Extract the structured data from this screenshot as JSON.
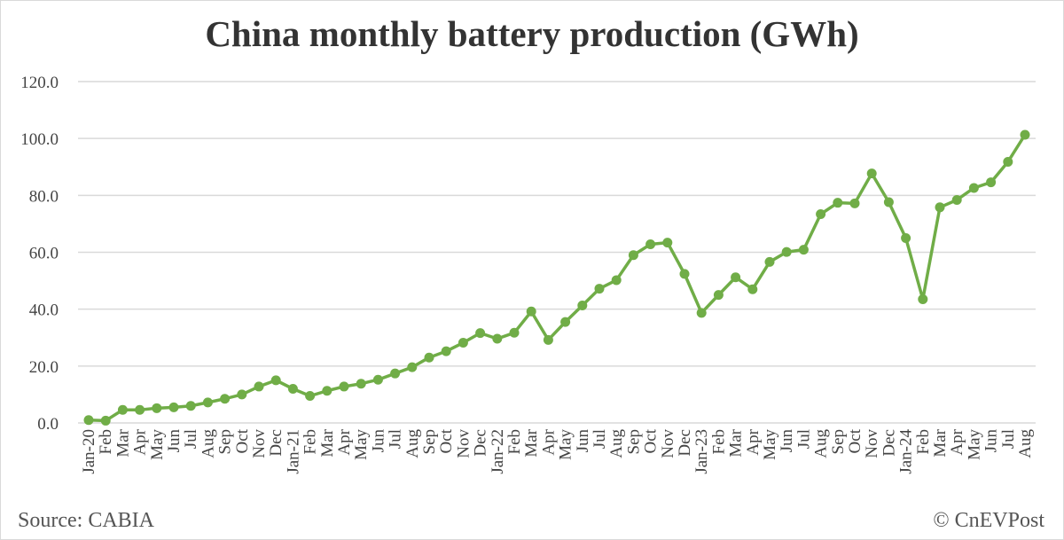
{
  "chart_data": {
    "type": "line",
    "title": "China monthly battery production (GWh)",
    "xlabel": "",
    "ylabel": "",
    "ylim": [
      0,
      120
    ],
    "yticks": [
      "0.0",
      "20.0",
      "40.0",
      "60.0",
      "80.0",
      "100.0",
      "120.0"
    ],
    "grid": true,
    "line_color": "#70ad47",
    "categories": [
      "Jan-20",
      "Feb",
      "Mar",
      "Apr",
      "May",
      "Jun",
      "Jul",
      "Aug",
      "Sep",
      "Oct",
      "Nov",
      "Dec",
      "Jan-21",
      "Feb",
      "Mar",
      "Apr",
      "May",
      "Jun",
      "Jul",
      "Aug",
      "Sep",
      "Oct",
      "Nov",
      "Dec",
      "Jan-22",
      "Feb",
      "Mar",
      "Apr",
      "May",
      "Jun",
      "Jul",
      "Aug",
      "Sep",
      "Oct",
      "Nov",
      "Dec",
      "Jan-23",
      "Feb",
      "Mar",
      "Apr",
      "May",
      "Jun",
      "Jul",
      "Aug",
      "Sep",
      "Oct",
      "Nov",
      "Dec",
      "Jan-24",
      "Feb",
      "Mar",
      "Apr",
      "May",
      "Jun",
      "Jul",
      "Aug"
    ],
    "values": [
      1.0,
      0.8,
      4.6,
      4.6,
      5.2,
      5.5,
      6.0,
      7.2,
      8.5,
      10.0,
      12.8,
      15.0,
      12.0,
      9.5,
      11.3,
      12.8,
      13.8,
      15.2,
      17.4,
      19.6,
      23.0,
      25.2,
      28.2,
      31.6,
      29.6,
      31.7,
      39.2,
      29.2,
      35.5,
      41.3,
      47.2,
      50.2,
      59.0,
      62.8,
      63.4,
      52.4,
      38.7,
      45.0,
      51.2,
      47.0,
      56.6,
      60.1,
      60.9,
      73.4,
      77.4,
      77.2,
      87.7,
      77.6,
      65.0,
      43.5,
      75.8,
      78.4,
      82.6,
      84.6,
      91.8,
      101.3
    ]
  },
  "footer": {
    "source": "Source: CABIA",
    "copyright": "© CnEVPost"
  }
}
